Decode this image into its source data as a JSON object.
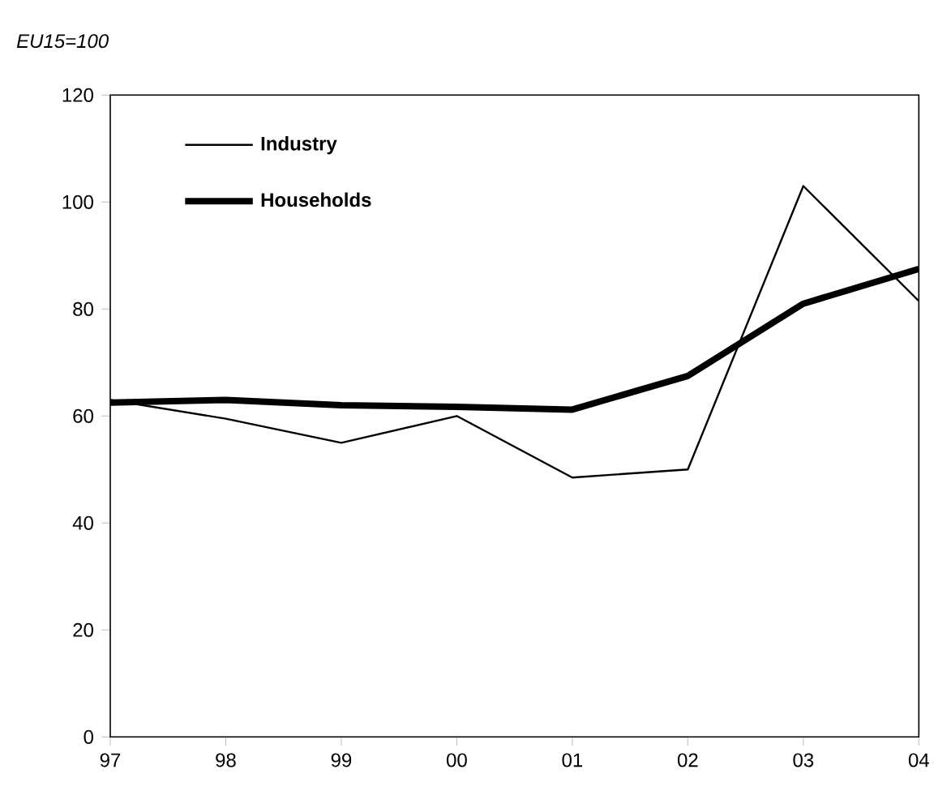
{
  "chart_data": {
    "type": "line",
    "title": "EU15=100",
    "categories": [
      "97",
      "98",
      "99",
      "00",
      "01",
      "02",
      "03",
      "04"
    ],
    "series": [
      {
        "name": "Industry",
        "color": "#000000",
        "values": [
          63,
          59.5,
          55,
          60,
          48.5,
          50,
          103,
          81.5
        ]
      },
      {
        "name": "Households",
        "color": "#000000",
        "values": [
          62.5,
          63,
          62,
          61.7,
          61.2,
          67.5,
          81,
          87.5
        ]
      }
    ],
    "ylim": [
      0,
      120
    ],
    "yticks": [
      0,
      20,
      40,
      60,
      80,
      100,
      120
    ],
    "legend": "top left",
    "grid": false,
    "marker": "none",
    "line_style": "solid"
  }
}
